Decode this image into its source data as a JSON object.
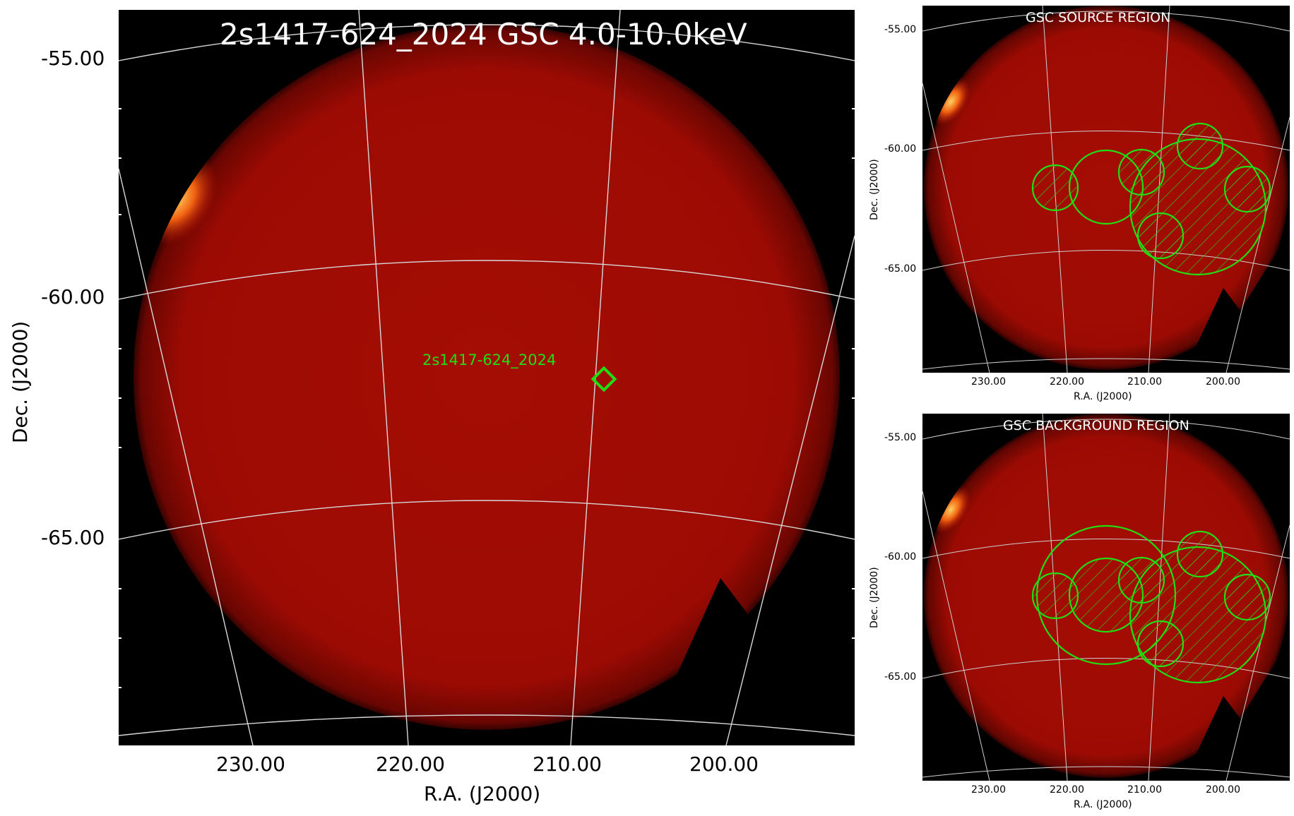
{
  "main": {
    "title": "2s1417-624_2024 GSC 4.0-10.0keV",
    "source_label": "2s1417-624_2024",
    "ylabel": "Dec. (J2000)",
    "xlabel": "R.A. (J2000)",
    "yticks": [
      "-55.00",
      "-60.00",
      "-65.00"
    ],
    "xticks": [
      "230.00",
      "220.00",
      "210.00",
      "200.00"
    ]
  },
  "source_panel": {
    "title": "GSC SOURCE REGION",
    "ylabel": "Dec. (J2000)",
    "xlabel": "R.A. (J2000)",
    "yticks": [
      "-55.00",
      "-60.00",
      "-65.00"
    ],
    "xticks": [
      "230.00",
      "220.00",
      "210.00",
      "200.00"
    ]
  },
  "background_panel": {
    "title": "GSC BACKGROUND REGION",
    "ylabel": "Dec. (J2000)",
    "xlabel": "R.A. (J2000)",
    "yticks": [
      "-55.00",
      "-60.00",
      "-65.00"
    ],
    "xticks": [
      "230.00",
      "220.00",
      "210.00",
      "200.00"
    ]
  },
  "colors": {
    "image_red": "#9e0c03",
    "region_green": "#22dd11",
    "grid": "#d8d8d8",
    "hot_spot": "#ffb030"
  }
}
